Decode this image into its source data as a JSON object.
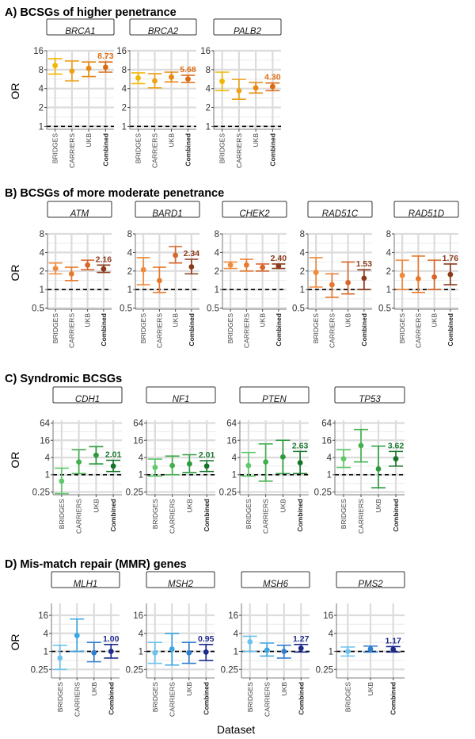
{
  "chart_data": [
    {
      "section": "A) BCSGs of higher penetrance",
      "type": "scatter",
      "ylabel": "OR",
      "y_scale": "log2",
      "ylim": [
        0.9,
        16
      ],
      "y_ticks": [
        "1",
        "2",
        "4",
        "8",
        "16"
      ],
      "reference_line": 1,
      "categories": [
        "BRIDGES",
        "CARRIERS",
        "UKB",
        "Combined"
      ],
      "palette": [
        "#f2b705",
        "#eda21a",
        "#e8880e",
        "#dd6a12"
      ],
      "value_color": "#e06a10",
      "panels": [
        {
          "gene": "BRCA1",
          "label": "8.73",
          "points": [
            {
              "or": 9.3,
              "lo": 6.8,
              "hi": 12.0
            },
            {
              "or": 7.6,
              "lo": 5.3,
              "hi": 11.0
            },
            {
              "or": 8.4,
              "lo": 6.2,
              "hi": 10.6
            },
            {
              "or": 8.73,
              "lo": 7.3,
              "hi": 10.6
            }
          ]
        },
        {
          "gene": "BRCA2",
          "label": "5.68",
          "points": [
            {
              "or": 5.9,
              "lo": 4.8,
              "hi": 7.1
            },
            {
              "or": 5.3,
              "lo": 4.1,
              "hi": 6.9
            },
            {
              "or": 6.1,
              "lo": 5.1,
              "hi": 7.3
            },
            {
              "or": 5.68,
              "lo": 5.0,
              "hi": 6.5
            }
          ]
        },
        {
          "gene": "PALB2",
          "label": "4.30",
          "points": [
            {
              "or": 5.2,
              "lo": 3.7,
              "hi": 7.3
            },
            {
              "or": 3.7,
              "lo": 2.7,
              "hi": 5.6
            },
            {
              "or": 4.1,
              "lo": 3.4,
              "hi": 5.0
            },
            {
              "or": 4.3,
              "lo": 3.7,
              "hi": 4.9
            }
          ]
        }
      ]
    },
    {
      "section": "B) BCSGs of more moderate penetrance",
      "type": "scatter",
      "ylabel": "OR",
      "y_scale": "log2",
      "ylim": [
        0.48,
        8
      ],
      "y_ticks": [
        "0.5",
        "1",
        "2",
        "4",
        "8"
      ],
      "reference_line": 1,
      "categories": [
        "BRIDGES",
        "CARRIERS",
        "UKB",
        "Combined"
      ],
      "palette": [
        "#f08a3a",
        "#e8782c",
        "#d8652a",
        "#8b3a1a"
      ],
      "value_color": "#8b3a1a",
      "panels": [
        {
          "gene": "ATM",
          "label": "2.16",
          "points": [
            {
              "or": 2.2,
              "lo": 1.8,
              "hi": 2.7
            },
            {
              "or": 1.8,
              "lo": 1.4,
              "hi": 2.3
            },
            {
              "or": 2.5,
              "lo": 2.1,
              "hi": 3.0
            },
            {
              "or": 2.16,
              "lo": 1.9,
              "hi": 2.5
            }
          ]
        },
        {
          "gene": "BARD1",
          "label": "2.34",
          "points": [
            {
              "or": 2.1,
              "lo": 1.2,
              "hi": 3.3
            },
            {
              "or": 1.4,
              "lo": 0.9,
              "hi": 2.3
            },
            {
              "or": 3.6,
              "lo": 2.7,
              "hi": 5.0
            },
            {
              "or": 2.34,
              "lo": 1.8,
              "hi": 3.1
            }
          ]
        },
        {
          "gene": "CHEK2",
          "label": "2.40",
          "points": [
            {
              "or": 2.5,
              "lo": 2.2,
              "hi": 2.8
            },
            {
              "or": 2.5,
              "lo": 2.0,
              "hi": 3.1
            },
            {
              "or": 2.3,
              "lo": 2.0,
              "hi": 2.6
            },
            {
              "or": 2.4,
              "lo": 2.2,
              "hi": 2.6
            }
          ]
        },
        {
          "gene": "RAD51C",
          "label": "1.53",
          "points": [
            {
              "or": 1.9,
              "lo": 1.1,
              "hi": 3.3
            },
            {
              "or": 1.2,
              "lo": 0.75,
              "hi": 1.8
            },
            {
              "or": 1.3,
              "lo": 0.85,
              "hi": 2.8
            },
            {
              "or": 1.53,
              "lo": 1.0,
              "hi": 2.1
            }
          ]
        },
        {
          "gene": "RAD51D",
          "label": "1.76",
          "points": [
            {
              "or": 1.7,
              "lo": 1.0,
              "hi": 3.0
            },
            {
              "or": 1.5,
              "lo": 0.9,
              "hi": 3.5
            },
            {
              "or": 1.6,
              "lo": 1.0,
              "hi": 3.0
            },
            {
              "or": 1.76,
              "lo": 1.2,
              "hi": 2.6
            }
          ]
        }
      ]
    },
    {
      "section": "C) Syndromic BCSGs",
      "type": "scatter",
      "ylabel": "OR",
      "y_scale": "log2",
      "ylim": [
        0.2,
        80
      ],
      "y_ticks": [
        "0.25",
        "1",
        "4",
        "16",
        "64"
      ],
      "reference_line": 1,
      "categories": [
        "BRIDGES",
        "CARRIERS",
        "UKB",
        "Combined"
      ],
      "palette": [
        "#5ec96a",
        "#42b04e",
        "#2a9a3c",
        "#17752a"
      ],
      "value_color": "#1b7a30",
      "panels": [
        {
          "gene": "CDH1",
          "label": "2.01",
          "points": [
            {
              "or": 0.6,
              "lo": 0.22,
              "hi": 1.7
            },
            {
              "or": 2.8,
              "lo": 1.1,
              "hi": 7.5
            },
            {
              "or": 4.8,
              "lo": 2.4,
              "hi": 9.6
            },
            {
              "or": 2.01,
              "lo": 1.3,
              "hi": 3.2
            }
          ]
        },
        {
          "gene": "NF1",
          "label": "2.01",
          "points": [
            {
              "or": 1.8,
              "lo": 0.9,
              "hi": 3.5
            },
            {
              "or": 2.1,
              "lo": 1.0,
              "hi": 4.5
            },
            {
              "or": 2.4,
              "lo": 1.2,
              "hi": 5.0
            },
            {
              "or": 2.01,
              "lo": 1.3,
              "hi": 3.1
            }
          ]
        },
        {
          "gene": "PTEN",
          "label": "2.63",
          "points": [
            {
              "or": 2.1,
              "lo": 0.9,
              "hi": 6.0
            },
            {
              "or": 2.8,
              "lo": 0.6,
              "hi": 12.0
            },
            {
              "or": 4.2,
              "lo": 1.1,
              "hi": 16.0
            },
            {
              "or": 2.63,
              "lo": 1.1,
              "hi": 6.5
            }
          ]
        },
        {
          "gene": "TP53",
          "label": "3.62",
          "points": [
            {
              "or": 3.6,
              "lo": 1.8,
              "hi": 7.5
            },
            {
              "or": 10.5,
              "lo": 2.8,
              "hi": 38.0
            },
            {
              "or": 1.6,
              "lo": 0.35,
              "hi": 10.0
            },
            {
              "or": 3.62,
              "lo": 2.0,
              "hi": 6.5
            }
          ]
        }
      ]
    },
    {
      "section": "D) Mis-match repair (MMR) genes",
      "type": "scatter",
      "ylabel": "OR",
      "y_scale": "log2",
      "ylim": [
        0.13,
        40
      ],
      "y_ticks": [
        "0.25",
        "1",
        "4",
        "16"
      ],
      "reference_line": 1,
      "categories": [
        "BRIDGES",
        "CARRIERS",
        "UKB",
        "Combined"
      ],
      "palette": [
        "#6ac3ee",
        "#3aa6e2",
        "#2f7fd0",
        "#1c2a8c"
      ],
      "value_color": "#1c2a8c",
      "panels": [
        {
          "gene": "MLH1",
          "label": "1.00",
          "points": [
            {
              "or": 0.6,
              "lo": 0.25,
              "hi": 1.6
            },
            {
              "or": 3.4,
              "lo": 1.0,
              "hi": 12.0
            },
            {
              "or": 0.9,
              "lo": 0.45,
              "hi": 2.0
            },
            {
              "or": 1.0,
              "lo": 0.6,
              "hi": 1.7
            }
          ]
        },
        {
          "gene": "MSH2",
          "label": "0.95",
          "points": [
            {
              "or": 0.9,
              "lo": 0.4,
              "hi": 2.0
            },
            {
              "or": 1.2,
              "lo": 0.35,
              "hi": 4.0
            },
            {
              "or": 0.9,
              "lo": 0.4,
              "hi": 2.0
            },
            {
              "or": 0.95,
              "lo": 0.5,
              "hi": 1.7
            }
          ]
        },
        {
          "gene": "MSH6",
          "label": "1.27",
          "points": [
            {
              "or": 2.1,
              "lo": 1.0,
              "hi": 3.2
            },
            {
              "or": 1.1,
              "lo": 0.7,
              "hi": 1.9
            },
            {
              "or": 1.0,
              "lo": 0.6,
              "hi": 1.6
            },
            {
              "or": 1.27,
              "lo": 0.95,
              "hi": 1.7
            }
          ]
        },
        {
          "gene": "PMS2",
          "categories": [
            "BRIDGES",
            "UKB",
            "Combined"
          ],
          "label": "1.17",
          "points": [
            {
              "or": 1.0,
              "lo": 0.7,
              "hi": 1.4
            },
            {
              "or": 1.2,
              "lo": 0.95,
              "hi": 1.5
            },
            {
              "or": 1.17,
              "lo": 0.95,
              "hi": 1.45
            }
          ]
        }
      ]
    }
  ],
  "x_axis_title": "Dataset"
}
